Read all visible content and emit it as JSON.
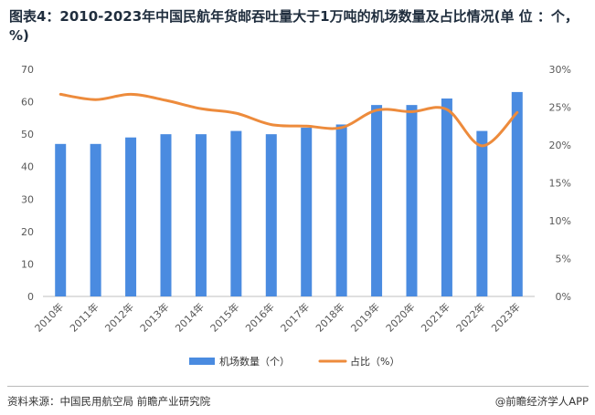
{
  "title": "图表4：2010-2023年中国民航年货邮吞吐量大于1万吨的机场数量及占比情况(单 位 ：个，%)",
  "chart_data": {
    "type": "bar",
    "categories": [
      "2010年",
      "2011年",
      "2012年",
      "2013年",
      "2014年",
      "2015年",
      "2016年",
      "2017年",
      "2018年",
      "2019年",
      "2020年",
      "2021年",
      "2022年",
      "2023年"
    ],
    "series": [
      {
        "name": "机场数量（个）",
        "type": "bar",
        "axis": "left",
        "color": "#4a8be0",
        "values": [
          47,
          47,
          49,
          50,
          50,
          51,
          50,
          52,
          53,
          59,
          59,
          61,
          51,
          63
        ]
      },
      {
        "name": "占比（%）",
        "type": "line",
        "axis": "right",
        "color": "#ed8b3c",
        "values": [
          26.7,
          26.0,
          26.7,
          25.9,
          24.8,
          24.2,
          22.7,
          22.5,
          22.3,
          24.6,
          24.4,
          24.7,
          19.9,
          24.3
        ]
      }
    ],
    "y_left": {
      "min": 0,
      "max": 70,
      "ticks": [
        0,
        10,
        20,
        30,
        40,
        50,
        60,
        70
      ],
      "tick_labels": [
        "0",
        "10",
        "20",
        "30",
        "40",
        "50",
        "60",
        "70"
      ]
    },
    "y_right": {
      "min": 0,
      "max": 30,
      "ticks": [
        0,
        5,
        10,
        15,
        20,
        25,
        30
      ],
      "tick_labels": [
        "0%",
        "5%",
        "10%",
        "15%",
        "20%",
        "25%",
        "30%"
      ]
    },
    "legend": [
      "机场数量（个）",
      "占比（%）"
    ],
    "legend_position": "bottom"
  },
  "footer": {
    "source": "资料来源：中国民用航空局 前瞻产业研究院",
    "brand": "@前瞻经济学人APP"
  }
}
